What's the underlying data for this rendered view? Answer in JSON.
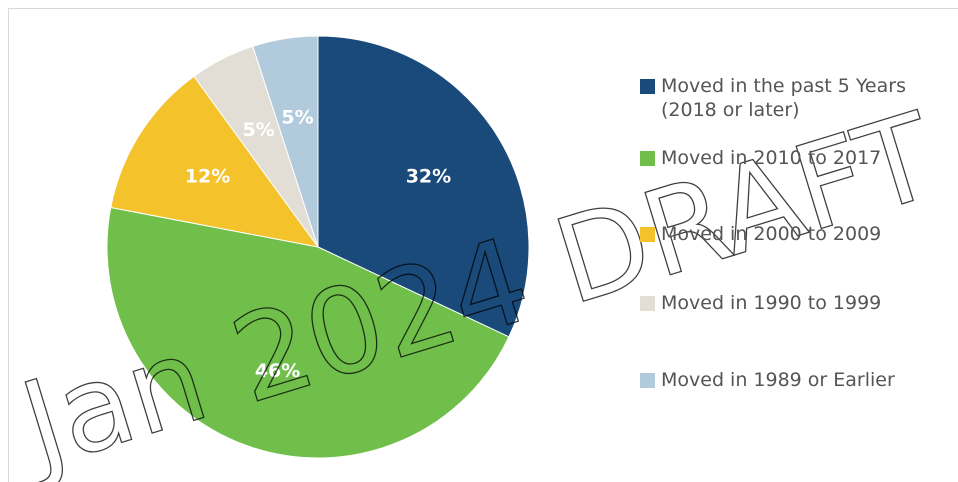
{
  "chart_data": {
    "type": "pie",
    "categories": [
      "Moved in the past 5 Years (2018 or later)",
      "Moved in 2010 to 2017",
      "Moved in 2000 to 2009",
      "Moved in 1990 to 1999",
      "Moved in 1989 or Earlier"
    ],
    "values": [
      32,
      46,
      12,
      5,
      5
    ],
    "value_labels": [
      "32%",
      "46%",
      "12%",
      "5%",
      "5%"
    ],
    "colors": [
      "#194a7a",
      "#70bf4b",
      "#f4c22b",
      "#e2ded6",
      "#b2cbdc"
    ],
    "legend": "right",
    "watermark": "Jan 2024 DRAFT"
  }
}
